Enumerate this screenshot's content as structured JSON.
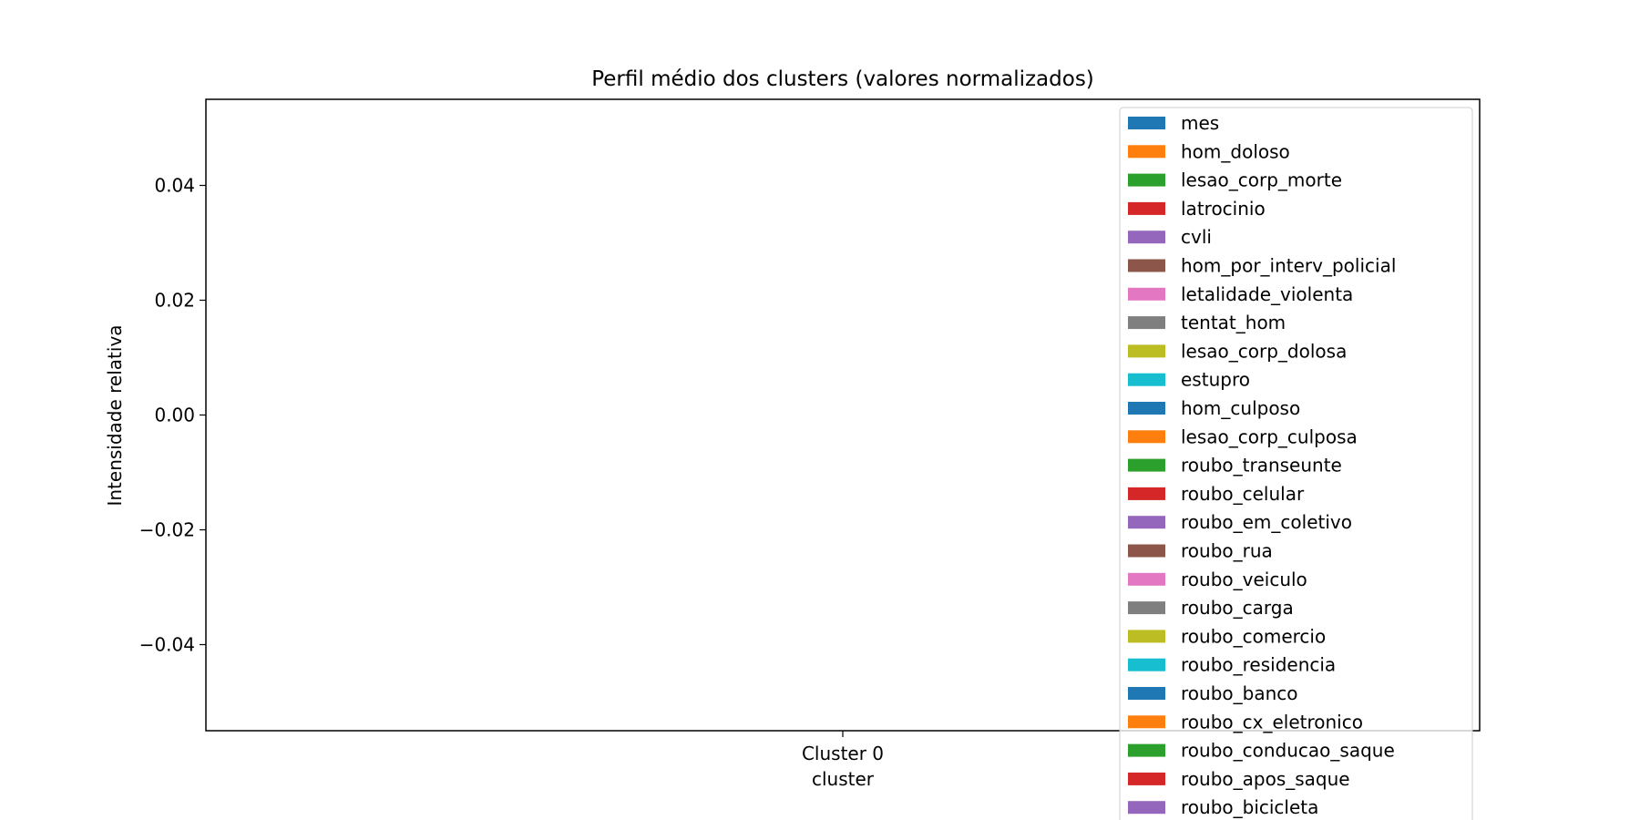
{
  "chart_data": {
    "type": "bar",
    "title": "Perfil médio dos clusters (valores normalizados)",
    "xlabel": "cluster",
    "ylabel": "Intensidade relativa",
    "categories": [
      "Cluster 0"
    ],
    "ylim": [
      -0.055,
      0.055
    ],
    "yticks": [
      0.04,
      0.02,
      0.0,
      -0.02,
      -0.04
    ],
    "ytick_labels": [
      "0.04",
      "0.02",
      "0.00",
      "−0.02",
      "−0.04"
    ],
    "grid": false,
    "legend_position": "upper right",
    "series": [
      {
        "name": "mes",
        "values": [
          0
        ],
        "color": "#1f77b4"
      },
      {
        "name": "hom_doloso",
        "values": [
          0
        ],
        "color": "#ff7f0e"
      },
      {
        "name": "lesao_corp_morte",
        "values": [
          0
        ],
        "color": "#2ca02c"
      },
      {
        "name": "latrocinio",
        "values": [
          0
        ],
        "color": "#d62728"
      },
      {
        "name": "cvli",
        "values": [
          0
        ],
        "color": "#9467bd"
      },
      {
        "name": "hom_por_interv_policial",
        "values": [
          0
        ],
        "color": "#8c564b"
      },
      {
        "name": "letalidade_violenta",
        "values": [
          0
        ],
        "color": "#e377c2"
      },
      {
        "name": "tentat_hom",
        "values": [
          0
        ],
        "color": "#7f7f7f"
      },
      {
        "name": "lesao_corp_dolosa",
        "values": [
          0
        ],
        "color": "#bcbd22"
      },
      {
        "name": "estupro",
        "values": [
          0
        ],
        "color": "#17becf"
      },
      {
        "name": "hom_culposo",
        "values": [
          0
        ],
        "color": "#1f77b4"
      },
      {
        "name": "lesao_corp_culposa",
        "values": [
          0
        ],
        "color": "#ff7f0e"
      },
      {
        "name": "roubo_transeunte",
        "values": [
          0
        ],
        "color": "#2ca02c"
      },
      {
        "name": "roubo_celular",
        "values": [
          0
        ],
        "color": "#d62728"
      },
      {
        "name": "roubo_em_coletivo",
        "values": [
          0
        ],
        "color": "#9467bd"
      },
      {
        "name": "roubo_rua",
        "values": [
          0
        ],
        "color": "#8c564b"
      },
      {
        "name": "roubo_veiculo",
        "values": [
          0
        ],
        "color": "#e377c2"
      },
      {
        "name": "roubo_carga",
        "values": [
          0
        ],
        "color": "#7f7f7f"
      },
      {
        "name": "roubo_comercio",
        "values": [
          0
        ],
        "color": "#bcbd22"
      },
      {
        "name": "roubo_residencia",
        "values": [
          0
        ],
        "color": "#17becf"
      },
      {
        "name": "roubo_banco",
        "values": [
          0
        ],
        "color": "#1f77b4"
      },
      {
        "name": "roubo_cx_eletronico",
        "values": [
          0
        ],
        "color": "#ff7f0e"
      },
      {
        "name": "roubo_conducao_saque",
        "values": [
          0
        ],
        "color": "#2ca02c"
      },
      {
        "name": "roubo_apos_saque",
        "values": [
          0
        ],
        "color": "#d62728"
      },
      {
        "name": "roubo_bicicleta",
        "values": [
          0
        ],
        "color": "#9467bd"
      }
    ]
  }
}
